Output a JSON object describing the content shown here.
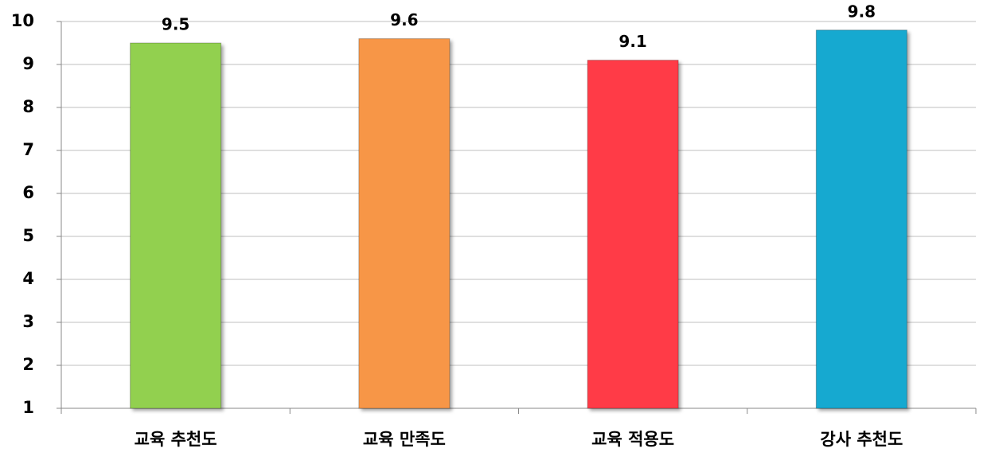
{
  "chart_data": {
    "type": "bar",
    "categories": [
      "교육 추천도",
      "교육 만족도",
      "교육 적용도",
      "강사 추천도"
    ],
    "values": [
      9.5,
      9.6,
      9.1,
      9.8
    ],
    "colors": [
      "#92d050",
      "#f79646",
      "#ff3b47",
      "#17a9d0"
    ],
    "ylim": [
      1,
      10
    ],
    "yticks": [
      1,
      2,
      3,
      4,
      5,
      6,
      7,
      8,
      9,
      10
    ],
    "grid": true
  }
}
